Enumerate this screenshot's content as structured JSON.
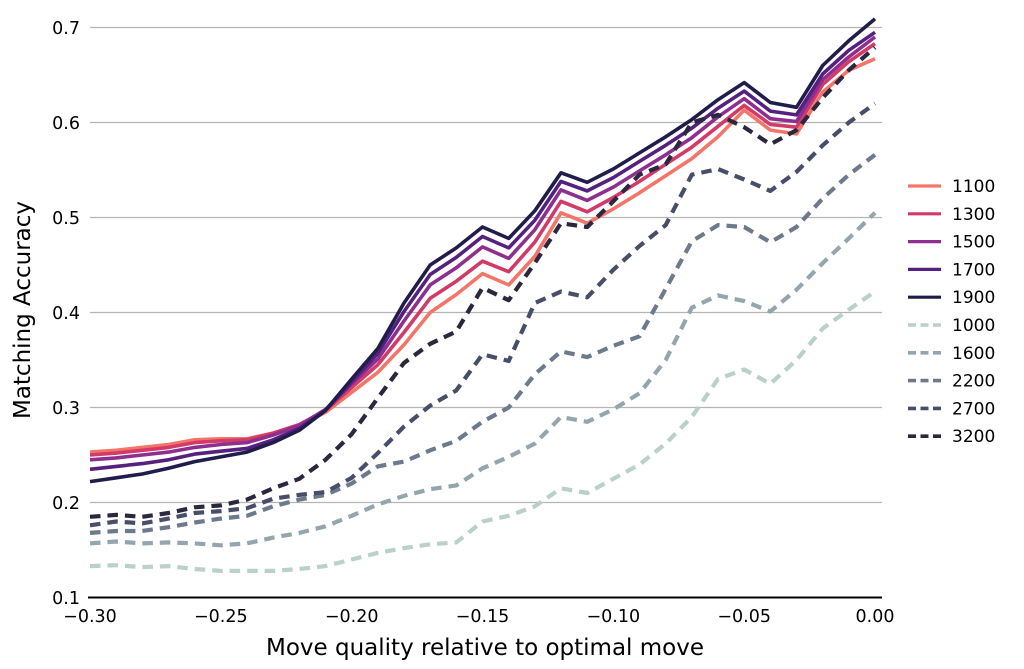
{
  "figure": {
    "background": "#ffffff",
    "grid_color": "#b5b5b5",
    "axis_color": "#000000"
  },
  "chart_data": {
    "type": "line",
    "title": "",
    "xlabel": "Move quality relative to optimal move",
    "ylabel": "Matching Accuracy",
    "xlim": [
      -0.3,
      0.0
    ],
    "ylim": [
      0.1,
      0.7
    ],
    "grid": "horizontal-only",
    "legend_position": "right-outside",
    "x_ticks": {
      "values": [
        -0.3,
        -0.25,
        -0.2,
        -0.15,
        -0.1,
        -0.05,
        0.0
      ],
      "labels": [
        "−0.30",
        "−0.25",
        "−0.20",
        "−0.15",
        "−0.10",
        "−0.05",
        "0.00"
      ]
    },
    "y_ticks": {
      "values": [
        0.1,
        0.2,
        0.3,
        0.4,
        0.5,
        0.6,
        0.7
      ],
      "labels": [
        "0.1",
        "0.2",
        "0.3",
        "0.4",
        "0.5",
        "0.6",
        "0.7"
      ]
    },
    "x": [
      -0.3,
      -0.29,
      -0.28,
      -0.27,
      -0.26,
      -0.25,
      -0.24,
      -0.23,
      -0.22,
      -0.21,
      -0.2,
      -0.19,
      -0.18,
      -0.17,
      -0.16,
      -0.15,
      -0.14,
      -0.13,
      -0.12,
      -0.11,
      -0.1,
      -0.09,
      -0.08,
      -0.07,
      -0.06,
      -0.05,
      -0.04,
      -0.03,
      -0.02,
      -0.01,
      0.0
    ],
    "series": [
      {
        "name": "1100",
        "style": "solid",
        "color": "#f37569",
        "values": [
          0.253,
          0.255,
          0.258,
          0.261,
          0.266,
          0.267,
          0.267,
          0.273,
          0.281,
          0.295,
          0.316,
          0.337,
          0.366,
          0.4,
          0.419,
          0.441,
          0.429,
          0.459,
          0.505,
          0.494,
          0.509,
          0.526,
          0.544,
          0.562,
          0.585,
          0.613,
          0.592,
          0.588,
          0.632,
          0.655,
          0.667
        ]
      },
      {
        "name": "1300",
        "style": "solid",
        "color": "#d23a68",
        "values": [
          0.25,
          0.252,
          0.255,
          0.258,
          0.263,
          0.265,
          0.266,
          0.273,
          0.282,
          0.297,
          0.321,
          0.345,
          0.379,
          0.415,
          0.433,
          0.454,
          0.443,
          0.474,
          0.517,
          0.506,
          0.521,
          0.538,
          0.556,
          0.574,
          0.596,
          0.618,
          0.598,
          0.595,
          0.64,
          0.664,
          0.683
        ]
      },
      {
        "name": "1500",
        "style": "solid",
        "color": "#8e2f90",
        "values": [
          0.245,
          0.247,
          0.25,
          0.253,
          0.258,
          0.261,
          0.263,
          0.271,
          0.281,
          0.298,
          0.325,
          0.351,
          0.391,
          0.429,
          0.447,
          0.469,
          0.457,
          0.487,
          0.529,
          0.518,
          0.532,
          0.549,
          0.566,
          0.584,
          0.606,
          0.625,
          0.604,
          0.601,
          0.645,
          0.669,
          0.69
        ]
      },
      {
        "name": "1700",
        "style": "solid",
        "color": "#55207f",
        "values": [
          0.235,
          0.238,
          0.241,
          0.245,
          0.251,
          0.254,
          0.257,
          0.266,
          0.278,
          0.297,
          0.327,
          0.357,
          0.401,
          0.44,
          0.458,
          0.48,
          0.468,
          0.497,
          0.538,
          0.528,
          0.542,
          0.559,
          0.576,
          0.594,
          0.615,
          0.633,
          0.612,
          0.608,
          0.651,
          0.676,
          0.695
        ]
      },
      {
        "name": "1900",
        "style": "solid",
        "color": "#201d4b",
        "values": [
          0.222,
          0.226,
          0.23,
          0.236,
          0.243,
          0.248,
          0.253,
          0.263,
          0.276,
          0.297,
          0.33,
          0.362,
          0.41,
          0.45,
          0.468,
          0.49,
          0.478,
          0.507,
          0.547,
          0.537,
          0.551,
          0.568,
          0.585,
          0.603,
          0.624,
          0.642,
          0.621,
          0.616,
          0.66,
          0.686,
          0.709
        ]
      },
      {
        "name": "1000",
        "style": "dashed",
        "color": "#bad0cb",
        "values": [
          0.133,
          0.134,
          0.132,
          0.133,
          0.13,
          0.128,
          0.128,
          0.128,
          0.13,
          0.133,
          0.14,
          0.147,
          0.152,
          0.156,
          0.158,
          0.18,
          0.186,
          0.196,
          0.215,
          0.21,
          0.225,
          0.24,
          0.262,
          0.29,
          0.33,
          0.34,
          0.325,
          0.35,
          0.383,
          0.403,
          0.422
        ]
      },
      {
        "name": "1600",
        "style": "dashed",
        "color": "#93a6ad",
        "values": [
          0.157,
          0.159,
          0.157,
          0.158,
          0.157,
          0.155,
          0.157,
          0.163,
          0.168,
          0.175,
          0.186,
          0.198,
          0.207,
          0.214,
          0.218,
          0.236,
          0.248,
          0.262,
          0.29,
          0.285,
          0.298,
          0.315,
          0.35,
          0.405,
          0.418,
          0.412,
          0.401,
          0.424,
          0.452,
          0.478,
          0.505
        ]
      },
      {
        "name": "2200",
        "style": "dashed",
        "color": "#6d7a8c",
        "values": [
          0.168,
          0.17,
          0.17,
          0.174,
          0.179,
          0.183,
          0.186,
          0.196,
          0.203,
          0.208,
          0.22,
          0.238,
          0.243,
          0.255,
          0.265,
          0.285,
          0.3,
          0.335,
          0.359,
          0.353,
          0.365,
          0.375,
          0.425,
          0.475,
          0.492,
          0.49,
          0.474,
          0.49,
          0.52,
          0.545,
          0.566
        ]
      },
      {
        "name": "2700",
        "style": "dashed",
        "color": "#484e69",
        "values": [
          0.176,
          0.18,
          0.178,
          0.183,
          0.189,
          0.191,
          0.194,
          0.204,
          0.208,
          0.211,
          0.226,
          0.252,
          0.28,
          0.302,
          0.318,
          0.356,
          0.349,
          0.41,
          0.422,
          0.416,
          0.445,
          0.47,
          0.492,
          0.545,
          0.551,
          0.54,
          0.528,
          0.548,
          0.576,
          0.6,
          0.62
        ]
      },
      {
        "name": "3200",
        "style": "dashed",
        "color": "#2a273e",
        "values": [
          0.185,
          0.187,
          0.185,
          0.189,
          0.195,
          0.197,
          0.203,
          0.215,
          0.225,
          0.245,
          0.272,
          0.31,
          0.347,
          0.367,
          0.38,
          0.426,
          0.413,
          0.452,
          0.494,
          0.49,
          0.517,
          0.545,
          0.556,
          0.6,
          0.608,
          0.595,
          0.577,
          0.592,
          0.626,
          0.655,
          0.679
        ]
      }
    ],
    "legend_entries": [
      "1100",
      "1300",
      "1500",
      "1700",
      "1900",
      "1000",
      "1600",
      "2200",
      "2700",
      "3200"
    ]
  }
}
